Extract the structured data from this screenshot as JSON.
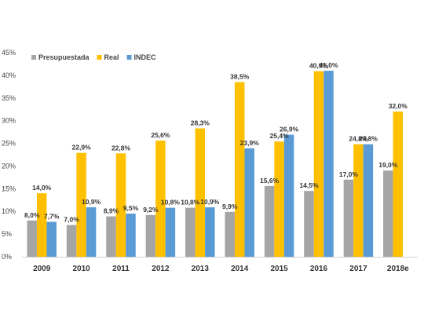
{
  "chart_data": {
    "type": "bar",
    "categories": [
      "2009",
      "2010",
      "2011",
      "2012",
      "2013",
      "2014",
      "2015",
      "2016",
      "2017",
      "2018e"
    ],
    "series": [
      {
        "name": "Presupuestada",
        "color": "#a5a5a5",
        "values": [
          8.0,
          7.0,
          8.9,
          9.2,
          10.8,
          9.9,
          15.6,
          14.5,
          17.0,
          19.0
        ],
        "labels": [
          "8,0%",
          "7,0%",
          "8,9%",
          "9,2%",
          "10,8%",
          "9,9%",
          "15,6%",
          "14,5%",
          "17,0%",
          "19,0%"
        ]
      },
      {
        "name": "Real",
        "color": "#ffc000",
        "values": [
          14.0,
          22.9,
          22.8,
          25.6,
          28.3,
          38.5,
          25.4,
          40.9,
          24.8,
          32.0
        ],
        "labels": [
          "14,0%",
          "22,9%",
          "22,8%",
          "25,6%",
          "28,3%",
          "38,5%",
          "25,4%",
          "40,9%",
          "24,8%",
          "32,0%"
        ]
      },
      {
        "name": "INDEC",
        "color": "#5b9bd5",
        "values": [
          7.7,
          10.9,
          9.5,
          10.8,
          10.9,
          23.9,
          26.9,
          41.0,
          24.8,
          null
        ],
        "labels": [
          "7,7%",
          "10,9%",
          "9,5%",
          "10,8%",
          "10,9%",
          "23,9%",
          "26,9%",
          "41,0%",
          "24,8%",
          ""
        ]
      }
    ],
    "ylim": [
      0,
      45
    ],
    "yticks": [
      0,
      5,
      10,
      15,
      20,
      25,
      30,
      35,
      40,
      45
    ],
    "ytick_labels": [
      "0%",
      "5%",
      "10%",
      "15%",
      "20%",
      "25%",
      "30%",
      "35%",
      "40%",
      "45%"
    ],
    "title": "",
    "xlabel": "",
    "ylabel": "",
    "legend_position": "top-left",
    "grid": false
  }
}
